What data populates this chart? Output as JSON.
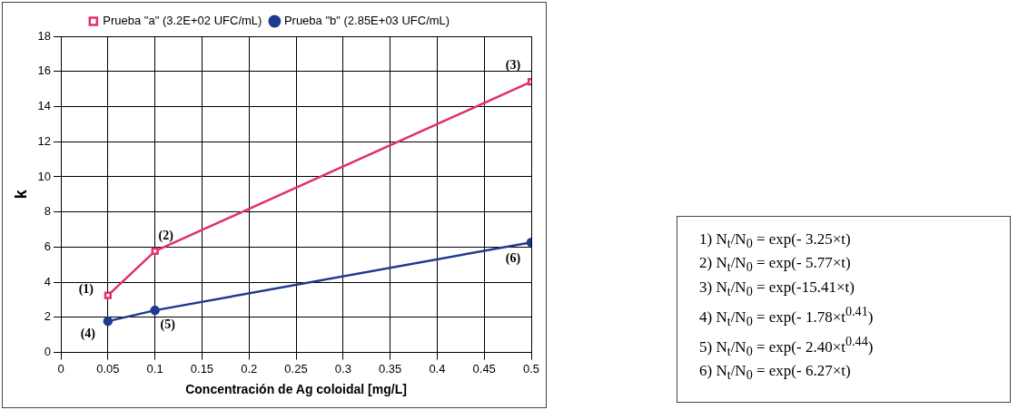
{
  "chart_data": {
    "type": "line",
    "xlabel": "Concentración de Ag coloidal [mg/L]",
    "ylabel": "k",
    "series": [
      {
        "name": "Prueba \"a\" (3.2E+02 UFC/mL)",
        "color": "#e0306e",
        "marker": "square",
        "x": [
          0.05,
          0.1,
          0.5
        ],
        "values": [
          3.25,
          5.77,
          15.41
        ]
      },
      {
        "name": "Prueba \"b\" (2.85E+03 UFC/mL)",
        "color": "#1f3a8f",
        "marker": "circle",
        "x": [
          0.05,
          0.1,
          0.5
        ],
        "values": [
          1.78,
          2.4,
          6.27
        ]
      }
    ],
    "xlim": [
      0,
      0.5
    ],
    "xticks": [
      0,
      0.05,
      0.1,
      0.15,
      0.2,
      0.25,
      0.3,
      0.35,
      0.4,
      0.45,
      0.5
    ],
    "ylim": [
      0,
      18
    ],
    "yticks": [
      0,
      2,
      4,
      6,
      8,
      10,
      12,
      14,
      16,
      18
    ],
    "grid": true,
    "legend": "top",
    "line_style": "solid",
    "annotations": [
      {
        "text": "(1)",
        "x": 0.05,
        "y": 3.25
      },
      {
        "text": "(2)",
        "x": 0.1,
        "y": 5.77
      },
      {
        "text": "(3)",
        "x": 0.5,
        "y": 15.41
      },
      {
        "text": "(4)",
        "x": 0.05,
        "y": 1.78
      },
      {
        "text": "(5)",
        "x": 0.1,
        "y": 2.4
      },
      {
        "text": "(6)",
        "x": 0.5,
        "y": 6.27
      },
      "1) N$_{t}$/N$_{0}$ = exp(- 3.25×t)",
      "2) N$_{t}$/N$_{0}$ = exp(- 5.77×t)",
      "3) N$_{t}$/N$_{0}$ = exp(-15.41×t)",
      "4) N$_{t}$/N$_{0}$ = exp(- 1.78×t$^{0.41}$)",
      "5) N$_{t}$/N$_{0}$ = exp(- 2.40×t$^{0.44}$)",
      "6) N$_{t}$/N$_{0}$ = exp(- 6.27×t)"
    ]
  }
}
